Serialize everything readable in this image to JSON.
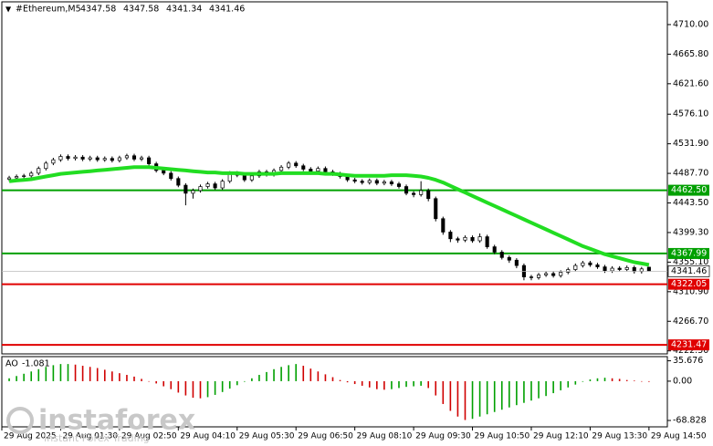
{
  "chart_data": {
    "type": "candlestick",
    "title": "#Ethereum,M5",
    "candles": {
      "open": [
        4479,
        4481,
        4483,
        4484,
        4488,
        4495,
        4503,
        4508,
        4513,
        4510,
        4512,
        4509,
        4511,
        4508,
        4510,
        4507,
        4511,
        4514,
        4509,
        4511,
        4502,
        4492,
        4488,
        4480,
        4470,
        4458,
        4462,
        4468,
        4472,
        4466,
        4476,
        4488,
        4485,
        4478,
        4484,
        4490,
        4486,
        4492,
        4497,
        4503,
        4499,
        4494,
        4491,
        4495,
        4490,
        4487,
        4483,
        4478,
        4476,
        4474,
        4477,
        4473,
        4475,
        4472,
        4468,
        4458,
        4456,
        4462,
        4450,
        4420,
        4400,
        4390,
        4388,
        4392,
        4387,
        4393,
        4378,
        4370,
        4362,
        4358,
        4350,
        4333,
        4332,
        4336,
        4338,
        4335,
        4340,
        4344,
        4350,
        4354,
        4351,
        4348,
        4342,
        4346,
        4344,
        4347,
        4341,
        4347.58
      ],
      "high": [
        4484,
        4486,
        4487,
        4491,
        4498,
        4506,
        4511,
        4516,
        4516,
        4515,
        4515,
        4514,
        4514,
        4513,
        4513,
        4514,
        4517,
        4517,
        4514,
        4514,
        4505,
        4495,
        4491,
        4483,
        4473,
        4465,
        4471,
        4475,
        4475,
        4479,
        4491,
        4491,
        4488,
        4487,
        4493,
        4493,
        4495,
        4500,
        4506,
        4506,
        4502,
        4497,
        4498,
        4498,
        4493,
        4490,
        4486,
        4481,
        4479,
        4480,
        4480,
        4478,
        4478,
        4475,
        4471,
        4461,
        4476,
        4465,
        4453,
        4423,
        4403,
        4393,
        4395,
        4395,
        4398,
        4396,
        4381,
        4373,
        4365,
        4361,
        4353,
        4336,
        4339,
        4341,
        4341,
        4343,
        4347,
        4353,
        4357,
        4357,
        4354,
        4351,
        4349,
        4349,
        4350,
        4350,
        4348,
        4347.58
      ],
      "low": [
        4476,
        4478,
        4480,
        4481,
        4485,
        4492,
        4500,
        4505,
        4507,
        4507,
        4506,
        4506,
        4505,
        4505,
        4504,
        4504,
        4508,
        4506,
        4506,
        4499,
        4489,
        4485,
        4477,
        4467,
        4440,
        4450,
        4459,
        4465,
        4463,
        4463,
        4473,
        4482,
        4475,
        4475,
        4481,
        4483,
        4483,
        4489,
        4494,
        4496,
        4491,
        4488,
        4488,
        4487,
        4484,
        4480,
        4475,
        4473,
        4471,
        4471,
        4470,
        4470,
        4469,
        4465,
        4455,
        4452,
        4453,
        4446,
        4416,
        4396,
        4385,
        4384,
        4385,
        4384,
        4384,
        4375,
        4367,
        4359,
        4354,
        4346,
        4328,
        4328,
        4329,
        4333,
        4332,
        4332,
        4337,
        4341,
        4347,
        4348,
        4345,
        4339,
        4339,
        4341,
        4341,
        4338,
        4338,
        4341.34
      ],
      "close": [
        4481,
        4483,
        4484,
        4488,
        4495,
        4503,
        4508,
        4513,
        4510,
        4512,
        4509,
        4511,
        4508,
        4510,
        4507,
        4511,
        4514,
        4509,
        4511,
        4502,
        4492,
        4488,
        4480,
        4470,
        4458,
        4462,
        4468,
        4472,
        4466,
        4476,
        4488,
        4485,
        4478,
        4484,
        4490,
        4486,
        4492,
        4497,
        4503,
        4499,
        4494,
        4491,
        4495,
        4490,
        4487,
        4483,
        4478,
        4476,
        4474,
        4477,
        4473,
        4475,
        4472,
        4468,
        4458,
        4456,
        4462,
        4450,
        4420,
        4400,
        4390,
        4388,
        4392,
        4387,
        4393,
        4378,
        4370,
        4362,
        4358,
        4350,
        4333,
        4332,
        4336,
        4338,
        4335,
        4340,
        4344,
        4350,
        4354,
        4351,
        4348,
        4342,
        4346,
        4344,
        4347,
        4341,
        4345,
        4341.46
      ],
      "color_up": "#ffffff",
      "color_down": "#000000"
    },
    "ma": {
      "color": "#22dd22",
      "values": [
        4476,
        4477,
        4478,
        4479,
        4481,
        4483,
        4485,
        4487,
        4488,
        4489,
        4490,
        4491,
        4492,
        4493,
        4494,
        4495,
        4496,
        4497,
        4497,
        4497,
        4496,
        4495,
        4494,
        4493,
        4492,
        4491,
        4490,
        4489,
        4489,
        4488,
        4488,
        4488,
        4487,
        4487,
        4487,
        4487,
        4487,
        4488,
        4488,
        4488,
        4488,
        4488,
        4488,
        4487,
        4487,
        4486,
        4485,
        4484,
        4484,
        4484,
        4484,
        4484,
        4485,
        4485,
        4485,
        4484,
        4483,
        4481,
        4478,
        4474,
        4469,
        4464,
        4459,
        4454,
        4449,
        4444,
        4439,
        4434,
        4429,
        4424,
        4419,
        4414,
        4409,
        4404,
        4399,
        4394,
        4389,
        4384,
        4379,
        4375,
        4371,
        4367,
        4364,
        4361,
        4358,
        4355,
        4353,
        4351
      ]
    },
    "levels": [
      {
        "value": 4462.5,
        "label": "4462.50",
        "color": "#00a000"
      },
      {
        "value": 4367.99,
        "label": "4367.99",
        "color": "#00a000"
      },
      {
        "value": 4322.05,
        "label": "4322.05",
        "color": "#e00000"
      },
      {
        "value": 4231.47,
        "label": "4231.47",
        "color": "#e00000"
      }
    ],
    "xlim": [
      -1,
      89.5
    ],
    "xticks": [
      {
        "value": -1,
        "label": "29 Aug 2025"
      },
      {
        "value": 7,
        "label": "29 Aug 01:30"
      },
      {
        "value": 15,
        "label": "29 Aug 02:50"
      },
      {
        "value": 23,
        "label": "29 Aug 04:10"
      },
      {
        "value": 31,
        "label": "29 Aug 05:30"
      },
      {
        "value": 39,
        "label": "29 Aug 06:50"
      },
      {
        "value": 47,
        "label": "29 Aug 08:10"
      },
      {
        "value": 55,
        "label": "29 Aug 09:30"
      },
      {
        "value": 63,
        "label": "29 Aug 10:50"
      },
      {
        "value": 71,
        "label": "29 Aug 12:10"
      },
      {
        "value": 79,
        "label": "29 Aug 13:30"
      },
      {
        "value": 87,
        "label": "29 Aug 14:50"
      }
    ],
    "ylim": [
      4218,
      4744
    ],
    "yticks": [
      {
        "value": 4710,
        "label": "4710.00"
      },
      {
        "value": 4665.8,
        "label": "4665.80"
      },
      {
        "value": 4621.6,
        "label": "4621.60"
      },
      {
        "value": 4576.1,
        "label": "4576.10"
      },
      {
        "value": 4531.9,
        "label": "4531.90"
      },
      {
        "value": 4487.7,
        "label": "4487.70"
      },
      {
        "value": 4443.5,
        "label": "4443.50"
      },
      {
        "value": 4399.3,
        "label": "4399.30"
      },
      {
        "value": 4355.1,
        "label": "4355.10"
      },
      {
        "value": 4310.9,
        "label": "4310.90"
      },
      {
        "value": 4266.7,
        "label": "4266.70"
      },
      {
        "value": 4222.5,
        "label": "4222.50"
      }
    ],
    "ao": {
      "name": "AO",
      "values": [
        5,
        9,
        13,
        17,
        21,
        25,
        28,
        30,
        30,
        29,
        27,
        25,
        23,
        20,
        17,
        14,
        11,
        8,
        4,
        0,
        -4,
        -9,
        -14,
        -20,
        -25,
        -29,
        -30,
        -28,
        -24,
        -19,
        -13,
        -7,
        -1,
        5,
        11,
        16,
        21,
        25,
        28,
        30,
        27,
        22,
        17,
        12,
        7,
        2,
        -2,
        -5,
        -8,
        -11,
        -14,
        -15,
        -14,
        -12,
        -10,
        -9,
        -8,
        -12,
        -25,
        -40,
        -52,
        -62,
        -68,
        -66,
        -62,
        -58,
        -54,
        -50,
        -46,
        -42,
        -38,
        -34,
        -30,
        -26,
        -21,
        -16,
        -11,
        -6,
        -1,
        3,
        5,
        6,
        5,
        4,
        2,
        1,
        0,
        -1.081
      ],
      "ylim": [
        -80,
        43
      ],
      "yticks": [
        35.676,
        {
          "value": 0,
          "label": "0.00"
        },
        -68.828
      ],
      "color_up": "#00a000",
      "color_down": "#d00000"
    },
    "watermark": {
      "brand": "instaforex",
      "tagline": "Instant Forex Trading"
    }
  }
}
